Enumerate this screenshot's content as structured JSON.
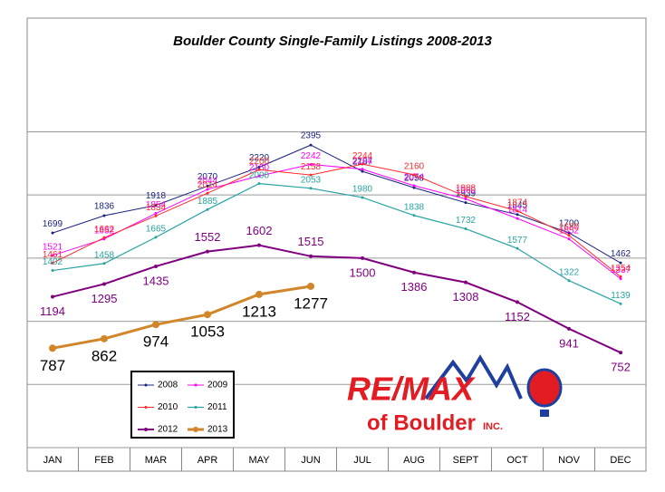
{
  "chart_data": {
    "type": "line",
    "title": "Boulder County Single-Family Listings 2008-2013",
    "categories": [
      "JAN",
      "FEB",
      "MAR",
      "APR",
      "MAY",
      "JUN",
      "JUL",
      "AUG",
      "SEPT",
      "OCT",
      "NOV",
      "DEC"
    ],
    "ylim": [
      0,
      3400
    ],
    "yticks": [
      0,
      500,
      1000,
      1500,
      2000,
      2500
    ],
    "grid": true,
    "legend": "lower-left",
    "series": [
      {
        "name": "2008",
        "color": "#1a237e",
        "values": [
          1699,
          1836,
          1918,
          2070,
          2220,
          2395,
          2187,
          2058,
          1939,
          1845,
          1700,
          1462
        ]
      },
      {
        "name": "2009",
        "color": "#ff00ff",
        "values": [
          1521,
          1652,
          1854,
          2044,
          2150,
          2242,
          2204,
          2074,
          1969,
          1814,
          1652,
          1337
        ]
      },
      {
        "name": "2010",
        "color": "#ff2a2a",
        "values": [
          1461,
          1662,
          1834,
          2014,
          2200,
          2158,
          2244,
          2160,
          1988,
          1874,
          1680,
          1354
        ]
      },
      {
        "name": "2011",
        "color": "#29a3a3",
        "values": [
          1402,
          1458,
          1665,
          1885,
          2090,
          2053,
          1980,
          1838,
          1732,
          1577,
          1322,
          1139
        ]
      },
      {
        "name": "2012",
        "color": "#800080",
        "values": [
          1194,
          1295,
          1435,
          1552,
          1602,
          1515,
          1500,
          1386,
          1308,
          1152,
          941,
          752
        ]
      },
      {
        "name": "2013",
        "color": "#d2862a",
        "values": [
          787,
          862,
          974,
          1053,
          1213,
          1277,
          null,
          null,
          null,
          null,
          null,
          null
        ]
      }
    ]
  },
  "logo": {
    "brand": "RE/MAX",
    "office": "of Boulder",
    "suffix": "INC."
  }
}
